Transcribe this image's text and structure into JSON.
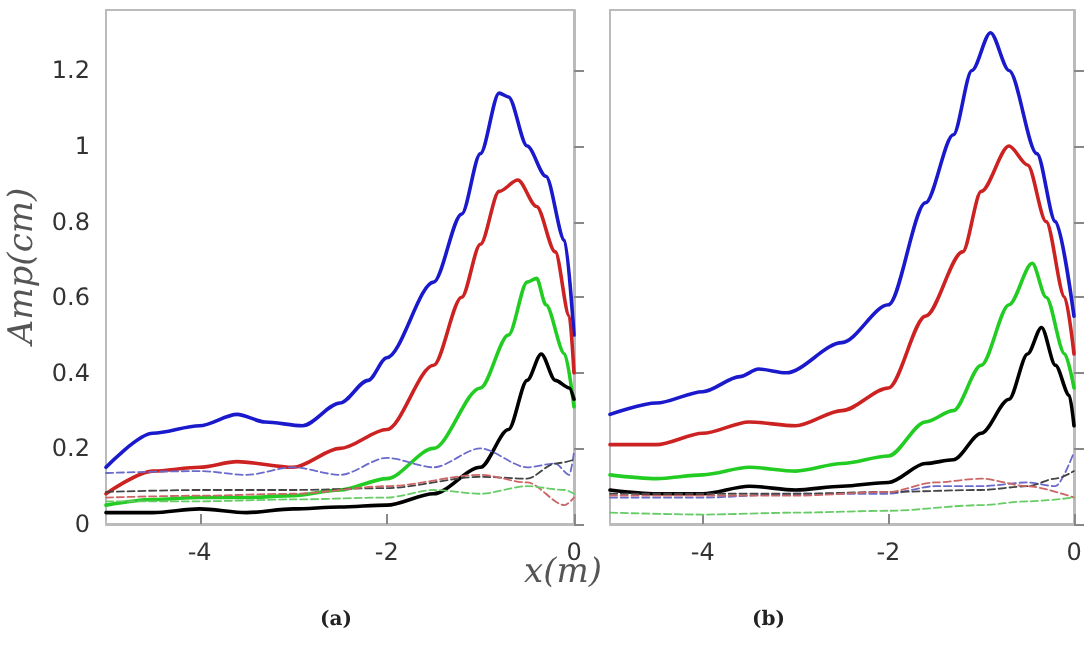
{
  "chart_data": [
    {
      "type": "line",
      "ylabel": "Amp(cm)",
      "xlabel": "x(m)",
      "annotations": [
        "(a)"
      ],
      "xlim": [
        -5,
        0
      ],
      "ylim": [
        0,
        1.36
      ],
      "xticks": [
        -4,
        -2,
        0
      ],
      "yticks": [
        0,
        0.2,
        0.4,
        0.6,
        0.8,
        1,
        1.2
      ],
      "grid": false,
      "marker": "none",
      "series": [
        {
          "color": "#1a1acc",
          "x": [
            -5,
            -4.5,
            -4,
            -3.6,
            -3.3,
            -2.9,
            -2.5,
            -2.2,
            -2,
            -1.5,
            -1.2,
            -1,
            -0.8,
            -0.7,
            -0.5,
            -0.3,
            -0.1,
            0
          ],
          "values": [
            0.15,
            0.24,
            0.26,
            0.29,
            0.27,
            0.26,
            0.32,
            0.38,
            0.44,
            0.64,
            0.82,
            0.98,
            1.14,
            1.13,
            1.0,
            0.92,
            0.75,
            0.5
          ]
        },
        {
          "color": "#cc2222",
          "x": [
            -5,
            -4.5,
            -4,
            -3.6,
            -3,
            -2.5,
            -2,
            -1.5,
            -1.2,
            -1,
            -0.8,
            -0.6,
            -0.4,
            -0.2,
            -0.05,
            0
          ],
          "values": [
            0.08,
            0.14,
            0.15,
            0.165,
            0.15,
            0.2,
            0.25,
            0.42,
            0.6,
            0.74,
            0.88,
            0.91,
            0.84,
            0.72,
            0.55,
            0.4
          ]
        },
        {
          "color": "#22cc22",
          "x": [
            -5,
            -4.5,
            -4,
            -3.5,
            -3,
            -2.5,
            -2,
            -1.5,
            -1,
            -0.7,
            -0.5,
            -0.4,
            -0.3,
            -0.1,
            0
          ],
          "values": [
            0.05,
            0.065,
            0.07,
            0.07,
            0.075,
            0.09,
            0.12,
            0.2,
            0.36,
            0.5,
            0.64,
            0.65,
            0.58,
            0.45,
            0.31
          ]
        },
        {
          "color": "#000000",
          "x": [
            -5,
            -4.5,
            -4,
            -3.5,
            -3,
            -2.5,
            -2,
            -1.5,
            -1,
            -0.7,
            -0.5,
            -0.35,
            -0.2,
            -0.05,
            0
          ],
          "values": [
            0.03,
            0.03,
            0.04,
            0.03,
            0.04,
            0.045,
            0.05,
            0.08,
            0.15,
            0.25,
            0.38,
            0.45,
            0.38,
            0.36,
            0.33
          ]
        },
        {
          "color": "#6a6acc",
          "line_style": "dashed",
          "x": [
            -5,
            -4,
            -3.5,
            -3,
            -2.5,
            -2,
            -1.5,
            -1,
            -0.5,
            -0.2,
            -0.05,
            0
          ],
          "values": [
            0.135,
            0.14,
            0.13,
            0.15,
            0.13,
            0.175,
            0.15,
            0.2,
            0.15,
            0.16,
            0.13,
            0.19
          ]
        },
        {
          "color": "#444444",
          "line_style": "dashed",
          "x": [
            -5,
            -4,
            -3,
            -2,
            -1,
            -0.5,
            -0.2,
            0
          ],
          "values": [
            0.085,
            0.09,
            0.09,
            0.095,
            0.125,
            0.12,
            0.16,
            0.17
          ]
        },
        {
          "color": "#cc6666",
          "line_style": "dashed",
          "x": [
            -5,
            -4,
            -3,
            -2,
            -1,
            -0.5,
            -0.1,
            0
          ],
          "values": [
            0.07,
            0.075,
            0.08,
            0.1,
            0.13,
            0.11,
            0.05,
            0.07
          ]
        },
        {
          "color": "#66cc66",
          "line_style": "dashed",
          "x": [
            -5,
            -4,
            -3,
            -2,
            -1.5,
            -1,
            -0.5,
            -0.1,
            0
          ],
          "values": [
            0.06,
            0.06,
            0.065,
            0.07,
            0.09,
            0.08,
            0.1,
            0.09,
            0.08
          ]
        }
      ]
    },
    {
      "type": "line",
      "annotations": [
        "(b)"
      ],
      "xlim": [
        -5,
        0
      ],
      "ylim": [
        0,
        1.36
      ],
      "xticks": [
        -4,
        -2,
        0
      ],
      "yticks": [
        {
          "value": 0,
          "label": null
        },
        {
          "value": 0.2,
          "label": null
        },
        {
          "value": 0.4,
          "label": null
        },
        {
          "value": 0.6,
          "label": null
        },
        {
          "value": 0.8,
          "label": null
        },
        {
          "value": 1,
          "label": null
        },
        {
          "value": 1.2,
          "label": null
        }
      ],
      "tick_labels": "x",
      "grid": false,
      "marker": "none",
      "series": [
        {
          "color": "#1a1acc",
          "x": [
            -5,
            -4.5,
            -4,
            -3.6,
            -3.4,
            -3.1,
            -2.5,
            -2,
            -1.6,
            -1.3,
            -1.1,
            -0.9,
            -0.7,
            -0.4,
            -0.2,
            0
          ],
          "values": [
            0.29,
            0.32,
            0.35,
            0.39,
            0.41,
            0.4,
            0.48,
            0.58,
            0.85,
            1.03,
            1.2,
            1.3,
            1.2,
            0.98,
            0.8,
            0.55
          ]
        },
        {
          "color": "#cc2222",
          "x": [
            -5,
            -4.5,
            -4,
            -3.5,
            -3,
            -2.5,
            -2,
            -1.6,
            -1.2,
            -1,
            -0.7,
            -0.5,
            -0.3,
            -0.1,
            0
          ],
          "values": [
            0.21,
            0.21,
            0.24,
            0.27,
            0.26,
            0.3,
            0.36,
            0.55,
            0.72,
            0.88,
            1.0,
            0.95,
            0.8,
            0.6,
            0.45
          ]
        },
        {
          "color": "#22cc22",
          "x": [
            -5,
            -4.5,
            -4,
            -3.5,
            -3,
            -2.5,
            -2,
            -1.6,
            -1.3,
            -1,
            -0.7,
            -0.45,
            -0.3,
            -0.1,
            0
          ],
          "values": [
            0.13,
            0.12,
            0.13,
            0.15,
            0.14,
            0.16,
            0.18,
            0.27,
            0.3,
            0.42,
            0.58,
            0.69,
            0.6,
            0.45,
            0.36
          ]
        },
        {
          "color": "#000000",
          "x": [
            -5,
            -4.5,
            -4,
            -3.5,
            -3,
            -2.5,
            -2,
            -1.6,
            -1.3,
            -1,
            -0.7,
            -0.5,
            -0.35,
            -0.2,
            -0.05,
            0
          ],
          "values": [
            0.09,
            0.08,
            0.08,
            0.1,
            0.09,
            0.1,
            0.11,
            0.16,
            0.17,
            0.24,
            0.33,
            0.45,
            0.52,
            0.42,
            0.34,
            0.26
          ]
        },
        {
          "color": "#6a6acc",
          "line_style": "dashed",
          "x": [
            -5,
            -4,
            -3,
            -2,
            -1.5,
            -1,
            -0.5,
            -0.2,
            0
          ],
          "values": [
            0.07,
            0.07,
            0.08,
            0.08,
            0.1,
            0.1,
            0.11,
            0.1,
            0.19
          ]
        },
        {
          "color": "#444444",
          "line_style": "dashed",
          "x": [
            -5,
            -4,
            -3,
            -2,
            -1,
            -0.5,
            -0.2,
            0
          ],
          "values": [
            0.08,
            0.08,
            0.08,
            0.085,
            0.09,
            0.1,
            0.12,
            0.14
          ]
        },
        {
          "color": "#cc6666",
          "line_style": "dashed",
          "x": [
            -5,
            -3,
            -2,
            -1.5,
            -1,
            -0.5,
            0
          ],
          "values": [
            0.075,
            0.075,
            0.085,
            0.11,
            0.12,
            0.1,
            0.07
          ]
        },
        {
          "color": "#66cc66",
          "line_style": "dashed",
          "x": [
            -5,
            -4,
            -3,
            -2,
            -1,
            -0.5,
            0
          ],
          "values": [
            0.03,
            0.025,
            0.03,
            0.035,
            0.05,
            0.06,
            0.07
          ]
        }
      ]
    }
  ]
}
